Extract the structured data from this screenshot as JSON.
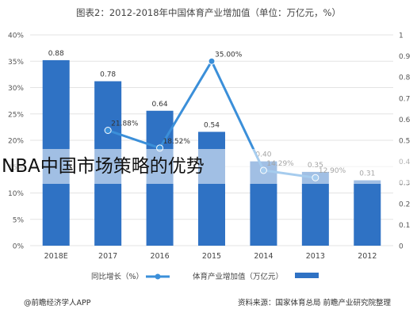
{
  "chart_data": {
    "type": "bar",
    "title": "图表2：2012-2018年中国体育产业增加值（单位：万亿元，%）",
    "categories": [
      "2018E",
      "2017",
      "2016",
      "2015",
      "2014",
      "2013",
      "2012"
    ],
    "series": [
      {
        "name": "体育产业增加值（万亿元）",
        "type": "bar",
        "axis": "right",
        "values": [
          0.88,
          0.78,
          0.64,
          0.54,
          0.4,
          0.35,
          0.31
        ],
        "labels": [
          "0.88",
          "0.78",
          "0.64",
          "0.54",
          "0.40",
          "0.35",
          "0.31"
        ],
        "color": "#2f72c4"
      },
      {
        "name": "同比增长（%）",
        "type": "line",
        "axis": "left",
        "values": [
          null,
          21.88,
          18.52,
          35.0,
          14.29,
          12.9,
          null
        ],
        "labels": [
          "",
          "21.88%",
          "18.52%",
          "35.00%",
          "14.29%",
          "12.90%",
          ""
        ],
        "color": "#3b8fd9"
      }
    ],
    "yleft": {
      "ylim": [
        0,
        40
      ],
      "ticks": [
        "0%",
        "5%",
        "10%",
        "15%",
        "20%",
        "25%",
        "30%",
        "35%",
        "40%"
      ]
    },
    "yright": {
      "ylim": [
        0,
        1.0
      ],
      "ticks": [
        "0",
        "0.1",
        "0.2",
        "0.3",
        "0.4",
        "0.5",
        "0.6",
        "0.7",
        "0.8",
        "0.9",
        "1"
      ]
    },
    "grid": true,
    "legend_position": "bottom"
  },
  "overlay": {
    "headline": "NBA中国市场策略的优势"
  },
  "footer": {
    "source": "资料来源：国家体育总局  前瞻产业研究院整理",
    "brand": "@前瞻经济学人APP"
  },
  "colors": {
    "bar": "#2f72c4",
    "line": "#3b8fd9",
    "grid": "#e3e3e3",
    "text": "#555555"
  }
}
